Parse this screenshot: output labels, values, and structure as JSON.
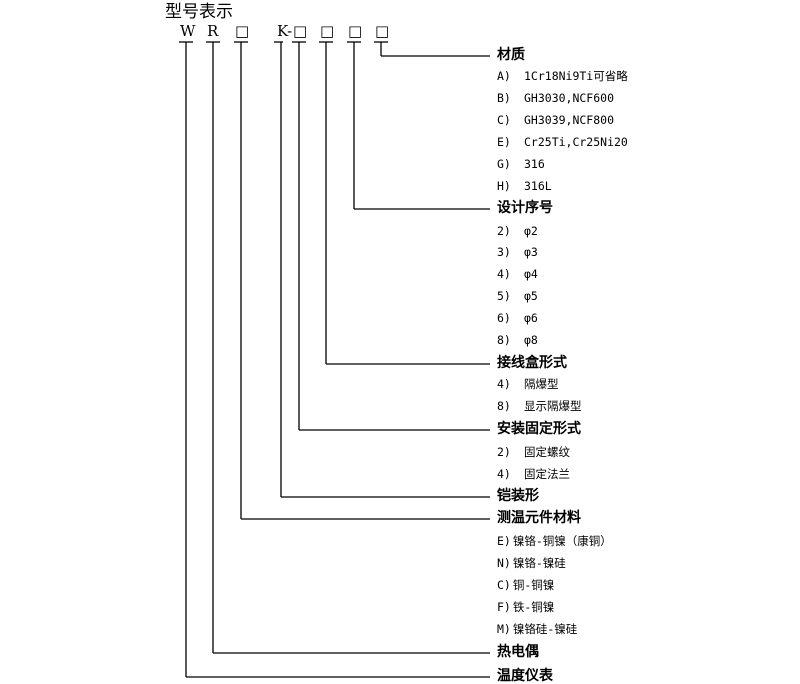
{
  "title": "型号表示",
  "code_symbols": [
    "W",
    "R",
    "□",
    "K-",
    "□",
    "□",
    "□",
    "□"
  ],
  "sections": [
    {
      "heading": "材质",
      "items": [
        {
          "key": "A)",
          "value": "1Cr18Ni9Ti可省略"
        },
        {
          "key": "B)",
          "value": "GH3030,NCF600"
        },
        {
          "key": "C)",
          "value": "GH3039,NCF800"
        },
        {
          "key": "E)",
          "value": "Cr25Ti,Cr25Ni20"
        },
        {
          "key": "G)",
          "value": "316"
        },
        {
          "key": "H)",
          "value": "316L"
        }
      ]
    },
    {
      "heading": "设计序号",
      "items": [
        {
          "key": "2)",
          "value": "φ2"
        },
        {
          "key": "3)",
          "value": "φ3"
        },
        {
          "key": "4)",
          "value": "φ4"
        },
        {
          "key": "5)",
          "value": "φ5"
        },
        {
          "key": "6)",
          "value": "φ6"
        },
        {
          "key": "8)",
          "value": "φ8"
        }
      ]
    },
    {
      "heading": "接线盒形式",
      "items": [
        {
          "key": "4)",
          "value": "隔爆型"
        },
        {
          "key": "8)",
          "value": "显示隔爆型"
        }
      ]
    },
    {
      "heading": "安装固定形式",
      "items": [
        {
          "key": "2)",
          "value": "固定螺纹"
        },
        {
          "key": "4)",
          "value": "固定法兰"
        }
      ]
    },
    {
      "heading": "铠装形",
      "items": []
    },
    {
      "heading": "测温元件材料",
      "items": [
        {
          "key": "E)",
          "value": "镍铬-铜镍（康铜）"
        },
        {
          "key": "N)",
          "value": "镍铬-镍硅"
        },
        {
          "key": "C)",
          "value": "铜-铜镍"
        },
        {
          "key": "F)",
          "value": "铁-铜镍"
        },
        {
          "key": "M)",
          "value": "镍铬硅-镍硅"
        }
      ]
    },
    {
      "heading": "热电偶",
      "items": []
    },
    {
      "heading": "温度仪表",
      "items": []
    }
  ]
}
